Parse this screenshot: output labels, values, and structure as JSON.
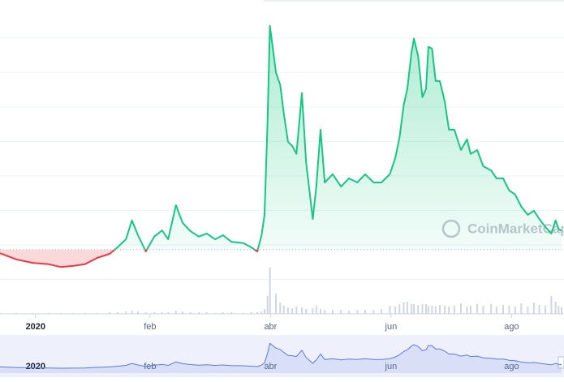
{
  "chart_data": {
    "type": "line",
    "watermark": "CoinMarketCap",
    "xlim": [
      -0.59,
      8.77
    ],
    "xticks": [
      {
        "value": 0,
        "label": "2020"
      },
      {
        "value": 1.9,
        "label": "feb"
      },
      {
        "value": 3.9,
        "label": "abr"
      },
      {
        "value": 5.9,
        "label": "jun"
      },
      {
        "value": 7.9,
        "label": "ago"
      }
    ],
    "ylim": [
      0,
      9.1
    ],
    "yticks": [
      1,
      2,
      3,
      4,
      5,
      6,
      7,
      8
    ],
    "grid": true,
    "baseline": 1.86,
    "up_color": "#16c784",
    "down_color": "#ea3943",
    "x": [
      -0.59,
      -0.32,
      -0.05,
      0.22,
      0.42,
      0.62,
      0.82,
      1.02,
      1.23,
      1.36,
      1.5,
      1.6,
      1.7,
      1.83,
      1.97,
      2.1,
      2.2,
      2.33,
      2.44,
      2.57,
      2.71,
      2.84,
      2.98,
      3.11,
      3.25,
      3.45,
      3.58,
      3.68,
      3.75,
      3.8,
      3.85,
      3.89,
      3.99,
      4.06,
      4.12,
      4.19,
      4.26,
      4.33,
      4.42,
      4.49,
      4.6,
      4.66,
      4.73,
      4.8,
      4.93,
      5.07,
      5.2,
      5.34,
      5.47,
      5.61,
      5.74,
      5.88,
      5.97,
      6.04,
      6.11,
      6.17,
      6.24,
      6.28,
      6.35,
      6.42,
      6.48,
      6.52,
      6.58,
      6.64,
      6.71,
      6.79,
      6.86,
      6.95,
      7.06,
      7.16,
      7.22,
      7.33,
      7.43,
      7.56,
      7.65,
      7.76,
      7.86,
      7.96,
      8.06,
      8.17,
      8.27,
      8.36,
      8.46,
      8.56,
      8.63,
      8.68,
      8.73
    ],
    "values": [
      1.76,
      1.58,
      1.48,
      1.44,
      1.36,
      1.39,
      1.44,
      1.62,
      1.74,
      1.93,
      2.16,
      2.71,
      2.28,
      1.81,
      2.24,
      2.42,
      2.16,
      3.15,
      2.64,
      2.4,
      2.24,
      2.33,
      2.16,
      2.28,
      2.09,
      2.05,
      1.93,
      1.81,
      2.28,
      2.87,
      5.58,
      8.35,
      6.99,
      6.64,
      5.81,
      4.99,
      4.87,
      4.64,
      6.4,
      4.4,
      2.75,
      3.69,
      5.34,
      3.81,
      4.05,
      3.69,
      3.93,
      3.81,
      4.05,
      3.81,
      3.81,
      4.05,
      4.52,
      5.11,
      6.05,
      6.52,
      7.58,
      7.98,
      7.46,
      6.28,
      6.52,
      7.74,
      7.69,
      6.75,
      6.75,
      6.16,
      5.34,
      5.34,
      4.75,
      5.06,
      4.64,
      4.75,
      4.28,
      4.16,
      3.93,
      3.93,
      3.58,
      3.46,
      3.11,
      2.87,
      2.99,
      2.75,
      2.52,
      2.33,
      2.71,
      2.47,
      2.4
    ],
    "volume_color": "#cfd6e4",
    "volume_lim": [
      0,
      60
    ],
    "volume": [
      1,
      1,
      1,
      1,
      1,
      1,
      1,
      1,
      2,
      2,
      3,
      4,
      3,
      2,
      2,
      2,
      2,
      4,
      3,
      2,
      2,
      2,
      1,
      2,
      2,
      1,
      2,
      2,
      3,
      6,
      22,
      57,
      25,
      14,
      10,
      8,
      7,
      9,
      8,
      6,
      7,
      10,
      6,
      5,
      5,
      5,
      4,
      5,
      5,
      5,
      6,
      10,
      9,
      12,
      14,
      15,
      12,
      12,
      11,
      12,
      12,
      10,
      10,
      9,
      11,
      10,
      9,
      10,
      13,
      9,
      10,
      12,
      10,
      12,
      9,
      11,
      10,
      9,
      13,
      9,
      14,
      11,
      10,
      22,
      15,
      10,
      8
    ],
    "navigator_color": "#5c7be0"
  }
}
